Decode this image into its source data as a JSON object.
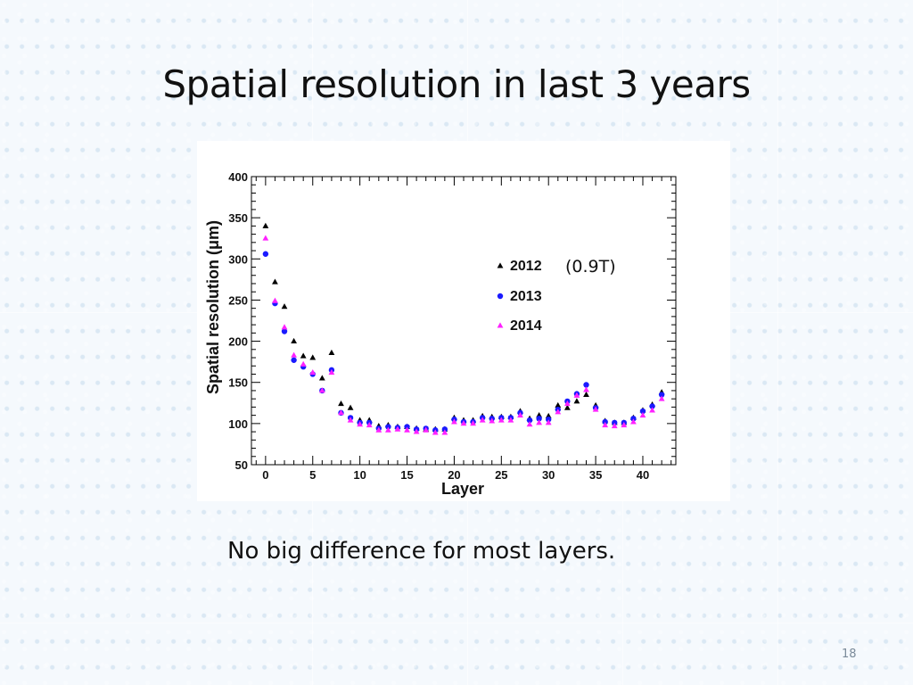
{
  "slide": {
    "title": "Spatial resolution in last 3 years",
    "caption": "No big difference for most layers.",
    "annotation": "(0.9T)",
    "page_number": "18"
  },
  "chart_data": {
    "type": "scatter",
    "title": "",
    "xlabel": "Layer",
    "ylabel": "Spatial resolution (μm)",
    "xlim": [
      -1.5,
      43.5
    ],
    "ylim": [
      50,
      400
    ],
    "xticks": [
      0,
      5,
      10,
      15,
      20,
      25,
      30,
      35,
      40
    ],
    "yticks": [
      50,
      100,
      150,
      200,
      250,
      300,
      350,
      400
    ],
    "grid": false,
    "legend_position": "right",
    "x": [
      0,
      1,
      2,
      3,
      4,
      5,
      6,
      7,
      8,
      9,
      10,
      11,
      12,
      13,
      14,
      15,
      16,
      17,
      18,
      19,
      20,
      21,
      22,
      23,
      24,
      25,
      26,
      27,
      28,
      29,
      30,
      31,
      32,
      33,
      34,
      35,
      36,
      37,
      38,
      39,
      40,
      41,
      42
    ],
    "series": [
      {
        "name": "2012",
        "marker": "triangle",
        "color": "#000000",
        "values": [
          340,
          272,
          242,
          200,
          182,
          180,
          155,
          186,
          124,
          119,
          104,
          104,
          97,
          98,
          96,
          96,
          94,
          93,
          93,
          93,
          107,
          104,
          104,
          109,
          108,
          108,
          108,
          115,
          106,
          110,
          109,
          122,
          119,
          127,
          135,
          122,
          103,
          101,
          101,
          107,
          116,
          123,
          138
        ]
      },
      {
        "name": "2013",
        "marker": "circle",
        "color": "#1a1aff",
        "values": [
          306,
          246,
          212,
          177,
          169,
          160,
          140,
          165,
          113,
          107,
          101,
          101,
          94,
          96,
          95,
          96,
          93,
          94,
          92,
          93,
          105,
          102,
          102,
          107,
          106,
          107,
          107,
          113,
          104,
          106,
          105,
          117,
          127,
          136,
          147,
          119,
          102,
          101,
          101,
          106,
          115,
          121,
          135
        ]
      },
      {
        "name": "2014",
        "marker": "triangle",
        "color": "#ff22ff",
        "values": [
          325,
          249,
          217,
          183,
          172,
          162,
          140,
          162,
          113,
          104,
          99,
          98,
          92,
          92,
          93,
          92,
          90,
          92,
          89,
          89,
          102,
          100,
          100,
          104,
          103,
          104,
          104,
          110,
          99,
          101,
          101,
          114,
          124,
          134,
          141,
          117,
          98,
          97,
          98,
          102,
          110,
          116,
          130
        ]
      }
    ]
  }
}
